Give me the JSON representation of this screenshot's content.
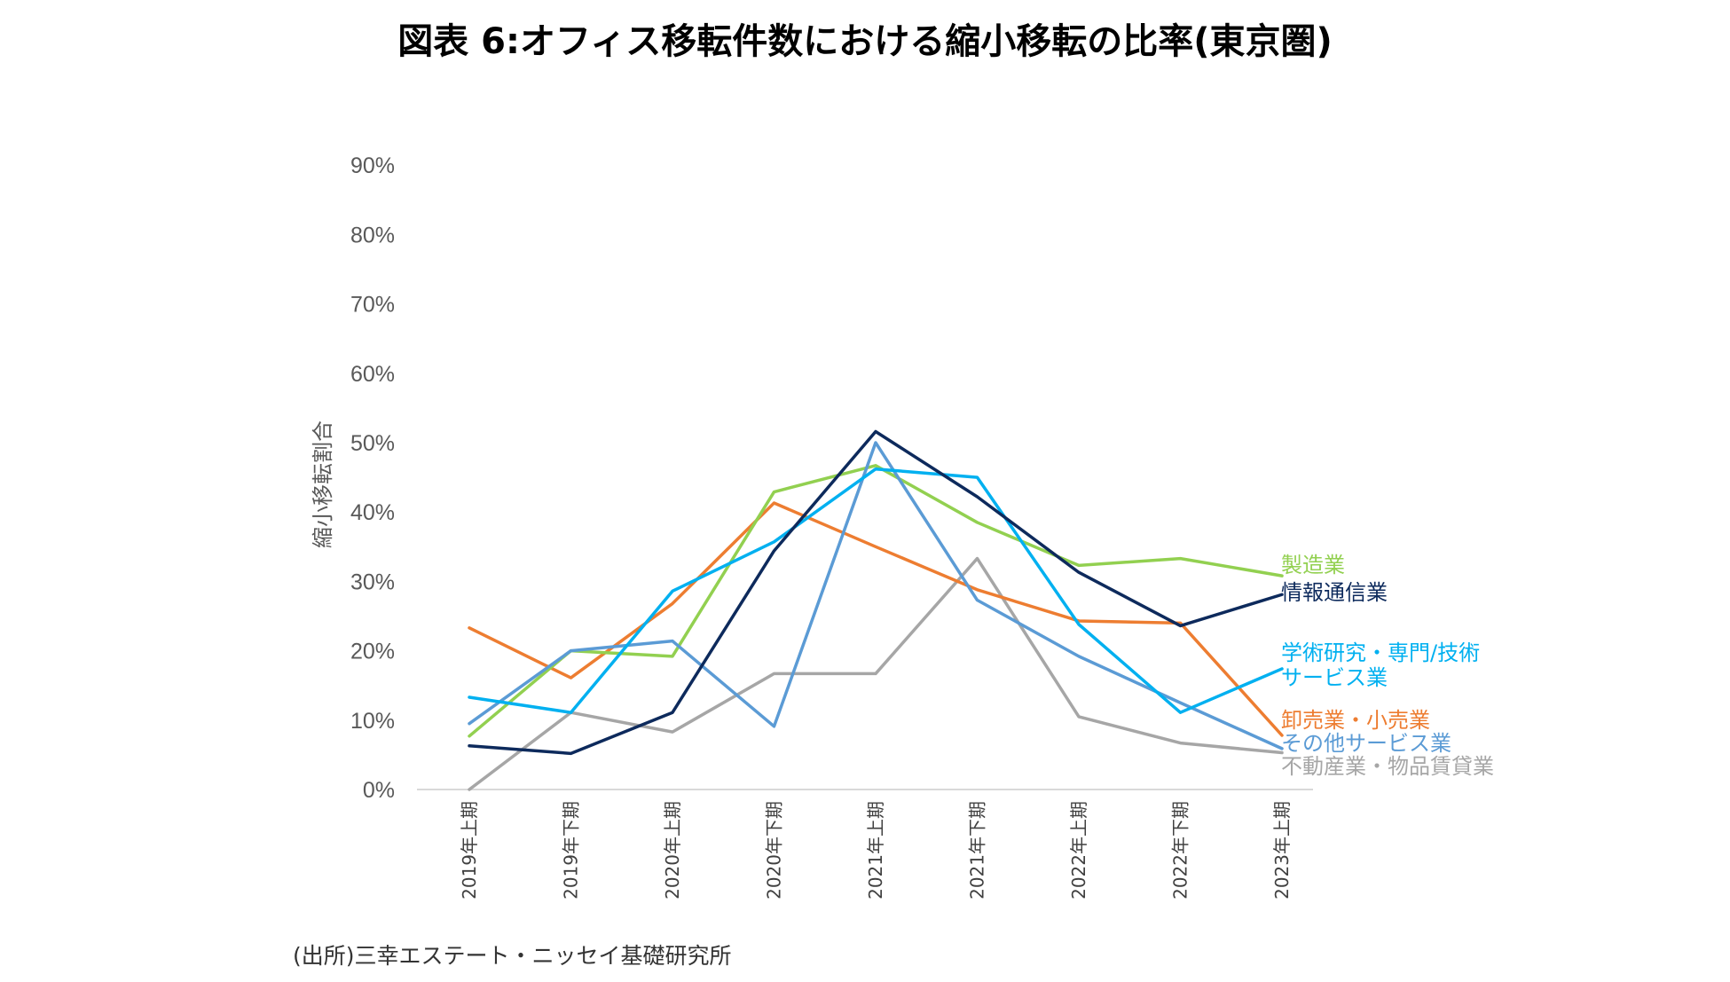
{
  "title": "図表 6:オフィス移転件数における縮小移転の比率(東京圏)",
  "source": "(出所)三幸エステート・ニッセイ基礎研究所",
  "chart_data": {
    "type": "line",
    "ylabel": "縮小移転割合",
    "ylim": [
      0,
      90
    ],
    "yticks": [
      "0%",
      "10%",
      "20%",
      "30%",
      "40%",
      "50%",
      "60%",
      "70%",
      "80%",
      "90%"
    ],
    "grid": false,
    "categories": [
      "2019年上期",
      "2019年下期",
      "2020年上期",
      "2020年下期",
      "2021年上期",
      "2021年下期",
      "2022年上期",
      "2022年下期",
      "2023年上期"
    ],
    "series": [
      {
        "name": "製造業",
        "label_lines": [
          "製造業"
        ],
        "color": "#92d050",
        "values": [
          7.7,
          20.0,
          19.2,
          42.9,
          46.7,
          38.5,
          32.3,
          33.3,
          30.8
        ]
      },
      {
        "name": "情報通信業",
        "label_lines": [
          "情報通信業"
        ],
        "color": "#0d2a5c",
        "values": [
          6.3,
          5.2,
          11.1,
          34.4,
          51.6,
          42.2,
          31.3,
          23.6,
          28.1
        ]
      },
      {
        "name": "学術研究・専門/技術サービス業",
        "label_lines": [
          "学術研究・専門/技術",
          "サービス業"
        ],
        "color": "#00b0f0",
        "values": [
          13.3,
          11.1,
          28.6,
          35.7,
          46.2,
          45.0,
          23.8,
          11.1,
          17.4
        ]
      },
      {
        "name": "卸売業・小売業",
        "label_lines": [
          "卸売業・小売業"
        ],
        "color": "#ed7d31",
        "values": [
          23.3,
          16.1,
          26.8,
          41.3,
          35.0,
          28.8,
          24.3,
          24.0,
          7.8
        ]
      },
      {
        "name": "その他サービス業",
        "label_lines": [
          "その他サービス業"
        ],
        "color": "#5b9bd5",
        "values": [
          9.5,
          20.0,
          21.4,
          9.1,
          50.0,
          27.3,
          19.2,
          12.5,
          5.9
        ]
      },
      {
        "name": "不動産業・物品賃貸業",
        "label_lines": [
          "不動産業・物品賃貸業"
        ],
        "color": "#a6a6a6",
        "values": [
          0.0,
          11.1,
          8.3,
          16.7,
          16.7,
          33.3,
          10.5,
          6.7,
          5.3
        ]
      }
    ]
  }
}
